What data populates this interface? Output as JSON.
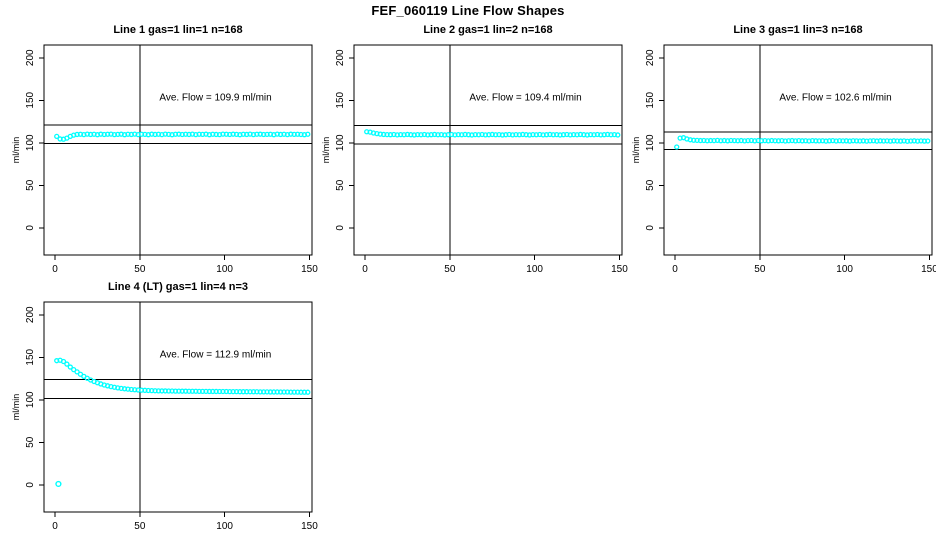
{
  "page_title": "FEF_060119  Line Flow Shapes",
  "colors": {
    "points": "#00ffff",
    "axis": "#000000",
    "background": "#ffffff",
    "text": "#000000"
  },
  "axes": {
    "xlim": [
      -6.5,
      151.5
    ],
    "ylim": [
      -32,
      215
    ],
    "x_ticks": [
      0,
      50,
      100,
      150
    ],
    "y_ticks": [
      0,
      50,
      100,
      150,
      200
    ],
    "y_axis_label": "ml/min",
    "vline_x": 50
  },
  "chart_data": [
    {
      "type": "scatter",
      "title": "Line 1 gas=1 lin=1 n=168",
      "annotation": "Ave. Flow =  109.9  ml/min",
      "ave_flow": 109.9,
      "hlines": [
        98.9,
        120.9
      ],
      "x_start": 1,
      "x_step": 2,
      "y": [
        107.5,
        104.5,
        104.2,
        105.5,
        107.5,
        109,
        109.8,
        110,
        109.6,
        110.2,
        109.8,
        110,
        109.5,
        110.1,
        109.7,
        110,
        110.2,
        109.6,
        109.9,
        110.1,
        109.5,
        110,
        109.8,
        110.2,
        109.6,
        110,
        109.9,
        109.5,
        110.1,
        109.8,
        110,
        109.6,
        110.2,
        109.9,
        109.5,
        110,
        110.1,
        109.7,
        110,
        109.8,
        110.2,
        109.6,
        110,
        109.9,
        110.1,
        109.5,
        110,
        109.8,
        109.6,
        110.2,
        110,
        109.7,
        110.1,
        109.9,
        109.5,
        110,
        109.8,
        110.2,
        109.6,
        110,
        110.1,
        109.7,
        109.9,
        110,
        109.5,
        110.2,
        109.8,
        110,
        109.6,
        110.1,
        109.9,
        110,
        109.7,
        109.5,
        110
      ],
      "outliers": []
    },
    {
      "type": "scatter",
      "title": "Line 2 gas=1 lin=2 n=168",
      "annotation": "Ave. Flow =  109.4  ml/min",
      "ave_flow": 109.4,
      "hlines": [
        98.5,
        120.3
      ],
      "x_start": 1,
      "x_step": 2,
      "y": [
        113,
        112.5,
        111.5,
        110.8,
        110.2,
        109.8,
        109.6,
        109.5,
        109.7,
        109.3,
        109.6,
        109.4,
        109.8,
        109.5,
        109.2,
        109.6,
        109.4,
        109.7,
        109.3,
        109.5,
        109.8,
        109.4,
        109.6,
        109.2,
        109.5,
        109.7,
        109.3,
        109.6,
        109.4,
        109.8,
        109.5,
        109.2,
        109.6,
        109.4,
        109.7,
        109.3,
        109.5,
        109.8,
        109.4,
        109.6,
        109.2,
        109.5,
        109.7,
        109.3,
        109.6,
        109.4,
        109.8,
        109.5,
        109.2,
        109.6,
        109.4,
        109.7,
        109.3,
        109.5,
        109.8,
        109.4,
        109.6,
        109.2,
        109.5,
        109.7,
        109.3,
        109.6,
        109.4,
        109.8,
        109.5,
        109.2,
        109.6,
        109.4,
        109.7,
        109.3,
        109.5,
        109.8,
        109.4,
        109.6,
        109.2
      ],
      "outliers": []
    },
    {
      "type": "scatter",
      "title": "Line 3 gas=1 lin=3 n=168",
      "annotation": "Ave. Flow =  102.6  ml/min",
      "ave_flow": 102.6,
      "hlines": [
        92.3,
        112.9
      ],
      "x_start": 1,
      "x_step": 2,
      "y": [
        95,
        105.5,
        106,
        104.5,
        103.5,
        103,
        102.8,
        102.6,
        102.7,
        102.4,
        102.6,
        102.5,
        102.8,
        102.4,
        102.6,
        102.3,
        102.7,
        102.5,
        102.4,
        102.6,
        102.2,
        102.5,
        102.7,
        102.3,
        102.6,
        102.4,
        102.5,
        102.2,
        102.6,
        102.4,
        102.3,
        102.5,
        102.1,
        102.4,
        102.6,
        102.2,
        102.5,
        102.3,
        102.4,
        102.1,
        102.5,
        102.3,
        102.2,
        102.4,
        102,
        102.3,
        102.5,
        102.1,
        102.4,
        102.2,
        102.3,
        102,
        102.4,
        102.2,
        102.1,
        102.3,
        101.9,
        102.2,
        102.4,
        102,
        102.3,
        102.1,
        102.2,
        101.9,
        102.3,
        102.1,
        102,
        102.2,
        101.8,
        102.1,
        102.3,
        101.9,
        102.2,
        102,
        102.1
      ],
      "outliers": []
    },
    {
      "type": "scatter",
      "title": "Line 4 (LT) gas=1 lin=4 n=3",
      "annotation": "Ave. Flow =  112.9  ml/min",
      "ave_flow": 112.9,
      "hlines": [
        101.5,
        124.1
      ],
      "x_start": 1,
      "x_step": 2,
      "y": [
        146,
        146.5,
        145,
        142,
        138.5,
        135.5,
        132.8,
        130,
        127.5,
        125.3,
        123.3,
        121.5,
        120,
        118.6,
        117.4,
        116.4,
        115.5,
        114.7,
        114,
        113.4,
        112.9,
        112.5,
        112.1,
        111.8,
        111.5,
        111.3,
        111.1,
        110.9,
        110.8,
        110.6,
        110.5,
        110.4,
        110.4,
        110.3,
        110.3,
        110.2,
        110.2,
        110.1,
        110.1,
        110,
        110,
        110,
        109.9,
        109.9,
        109.9,
        109.8,
        109.8,
        109.8,
        109.7,
        109.7,
        109.7,
        109.6,
        109.6,
        109.6,
        109.5,
        109.5,
        109.5,
        109.4,
        109.4,
        109.4,
        109.3,
        109.3,
        109.3,
        109.2,
        109.2,
        109.2,
        109.1,
        109.1,
        109.1,
        109,
        109,
        109,
        108.9,
        108.9,
        108.9
      ],
      "outliers": [
        [
          2,
          1
        ]
      ]
    }
  ]
}
